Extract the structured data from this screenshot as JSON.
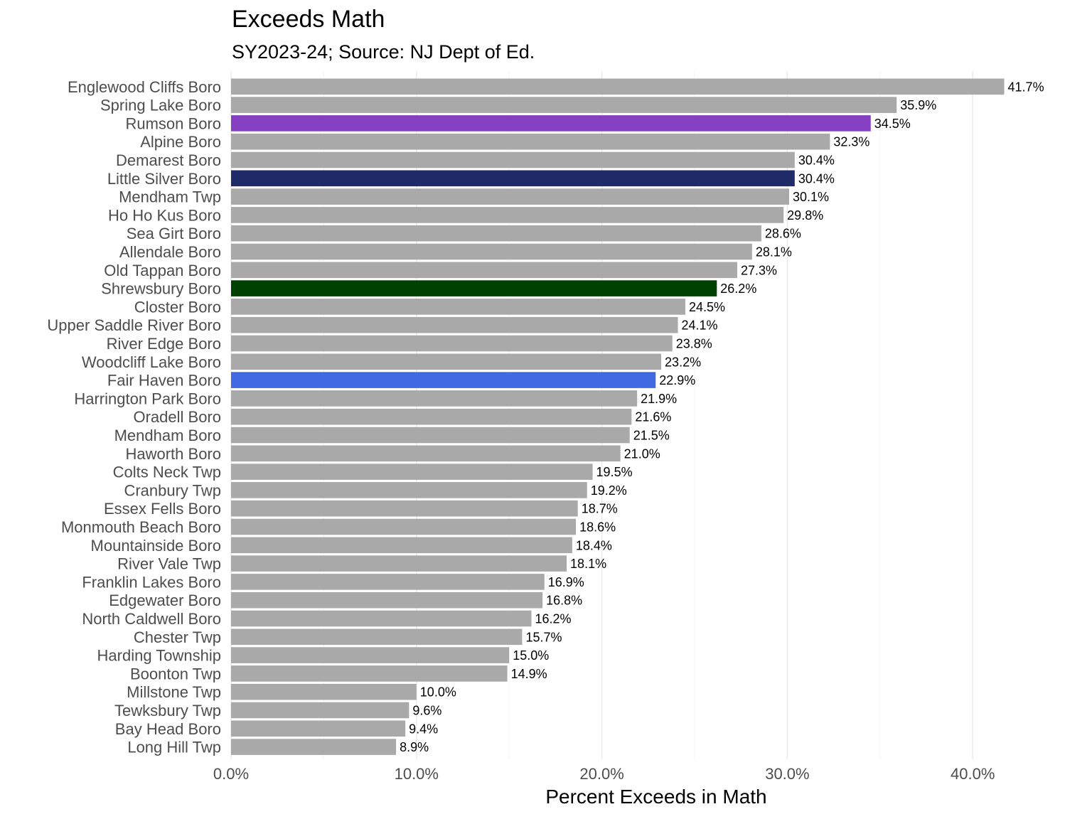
{
  "chart_data": {
    "type": "bar",
    "orientation": "horizontal",
    "title": "Exceeds Math",
    "subtitle": "SY2023-24; Source: NJ Dept of Ed.",
    "xlabel": "Percent Exceeds in Math",
    "ylabel": "",
    "xlim": [
      0,
      45
    ],
    "xticks": [
      0,
      10,
      20,
      30,
      40
    ],
    "xtick_labels": [
      "0.0%",
      "10.0%",
      "20.0%",
      "30.0%",
      "40.0%"
    ],
    "grid": "vertical",
    "default_color": "#a9a9a9",
    "categories": [
      "Englewood Cliffs Boro",
      "Spring Lake Boro",
      "Rumson Boro",
      "Alpine Boro",
      "Demarest Boro",
      "Little Silver Boro",
      "Mendham Twp",
      "Ho Ho Kus Boro",
      "Sea Girt Boro",
      "Allendale Boro",
      "Old Tappan Boro",
      "Shrewsbury Boro",
      "Closter Boro",
      "Upper Saddle River Boro",
      "River Edge Boro",
      "Woodcliff Lake Boro",
      "Fair Haven Boro",
      "Harrington Park Boro",
      "Oradell Boro",
      "Mendham Boro",
      "Haworth Boro",
      "Colts Neck Twp",
      "Cranbury Twp",
      "Essex Fells Boro",
      "Monmouth Beach Boro",
      "Mountainside Boro",
      "River Vale Twp",
      "Franklin Lakes Boro",
      "Edgewater Boro",
      "North Caldwell Boro",
      "Chester Twp",
      "Harding Township",
      "Boonton Twp",
      "Millstone Twp",
      "Tewksbury Twp",
      "Bay Head Boro",
      "Long Hill Twp"
    ],
    "values": [
      41.7,
      35.9,
      34.5,
      32.3,
      30.4,
      30.4,
      30.1,
      29.8,
      28.6,
      28.1,
      27.3,
      26.2,
      24.5,
      24.1,
      23.8,
      23.2,
      22.9,
      21.9,
      21.6,
      21.5,
      21.0,
      19.5,
      19.2,
      18.7,
      18.6,
      18.4,
      18.1,
      16.9,
      16.8,
      16.2,
      15.7,
      15.0,
      14.9,
      10.0,
      9.6,
      9.4,
      8.9
    ],
    "value_labels": [
      "41.7%",
      "35.9%",
      "34.5%",
      "32.3%",
      "30.4%",
      "30.4%",
      "30.1%",
      "29.8%",
      "28.6%",
      "28.1%",
      "27.3%",
      "26.2%",
      "24.5%",
      "24.1%",
      "23.8%",
      "23.2%",
      "22.9%",
      "21.9%",
      "21.6%",
      "21.5%",
      "21.0%",
      "19.5%",
      "19.2%",
      "18.7%",
      "18.6%",
      "18.4%",
      "18.1%",
      "16.9%",
      "16.8%",
      "16.2%",
      "15.7%",
      "15.0%",
      "14.9%",
      "10.0%",
      "9.6%",
      "9.4%",
      "8.9%"
    ],
    "highlights": {
      "Rumson Boro": "#8540c2",
      "Little Silver Boro": "#1f2a68",
      "Shrewsbury Boro": "#004000",
      "Fair Haven Boro": "#4169e1"
    }
  }
}
